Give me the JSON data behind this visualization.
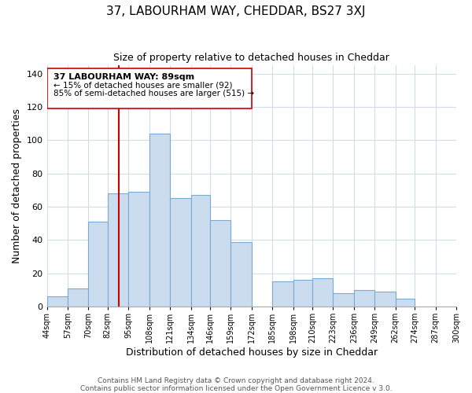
{
  "title": "37, LABOURHAM WAY, CHEDDAR, BS27 3XJ",
  "subtitle": "Size of property relative to detached houses in Cheddar",
  "xlabel": "Distribution of detached houses by size in Cheddar",
  "ylabel": "Number of detached properties",
  "footnote1": "Contains HM Land Registry data © Crown copyright and database right 2024.",
  "footnote2": "Contains public sector information licensed under the Open Government Licence v 3.0.",
  "bar_edges": [
    44,
    57,
    70,
    82,
    95,
    108,
    121,
    134,
    146,
    159,
    172,
    185,
    198,
    210,
    223,
    236,
    249,
    262,
    274,
    287,
    300
  ],
  "bar_heights": [
    6,
    11,
    51,
    68,
    69,
    104,
    65,
    67,
    52,
    39,
    0,
    15,
    16,
    17,
    8,
    10,
    9,
    5,
    0,
    0
  ],
  "bar_color": "#ccdcef",
  "bar_edgecolor": "#7aaad0",
  "vline_x": 89,
  "vline_color": "#cc0000",
  "ylim": [
    0,
    145
  ],
  "yticks": [
    0,
    20,
    40,
    60,
    80,
    100,
    120,
    140
  ],
  "tick_labels": [
    "44sqm",
    "57sqm",
    "70sqm",
    "82sqm",
    "95sqm",
    "108sqm",
    "121sqm",
    "134sqm",
    "146sqm",
    "159sqm",
    "172sqm",
    "185sqm",
    "198sqm",
    "210sqm",
    "223sqm",
    "236sqm",
    "249sqm",
    "262sqm",
    "274sqm",
    "287sqm",
    "300sqm"
  ],
  "annotation_title": "37 LABOURHAM WAY: 89sqm",
  "annotation_line1": "← 15% of detached houses are smaller (92)",
  "annotation_line2": "85% of semi-detached houses are larger (515) →",
  "grid_color": "#d0dce8"
}
